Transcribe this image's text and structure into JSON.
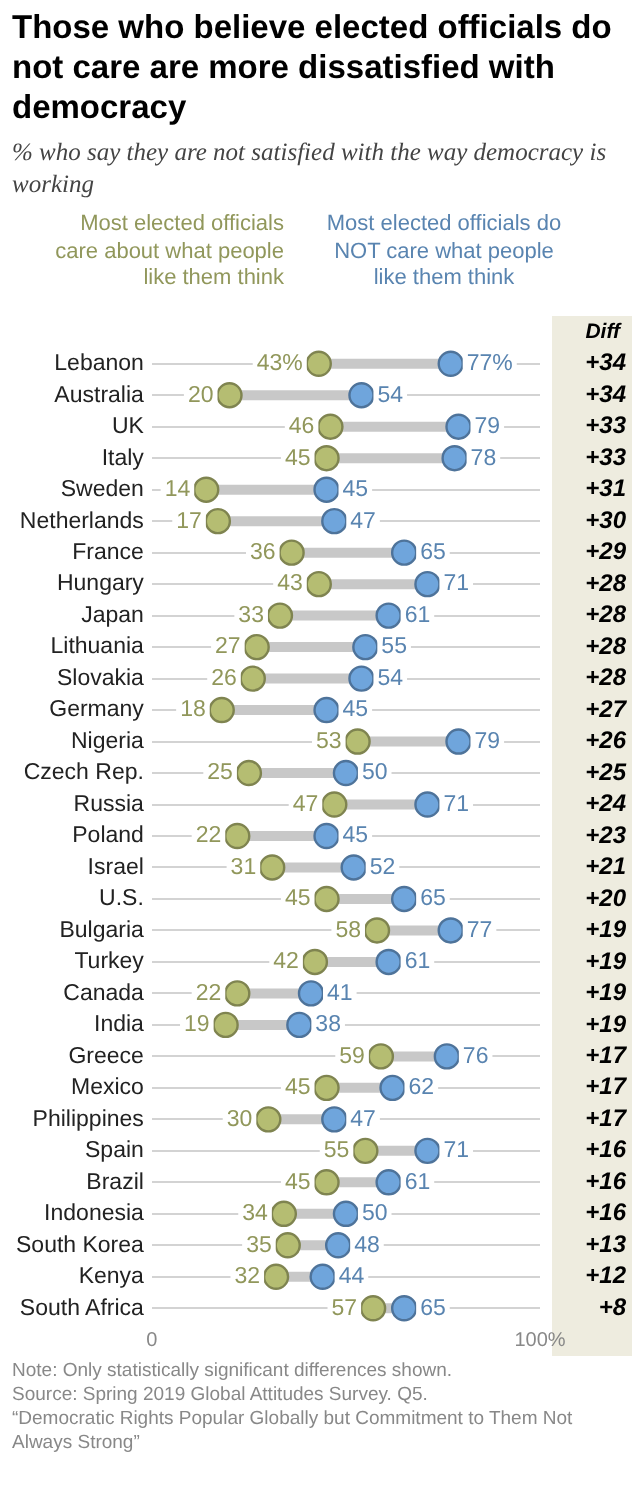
{
  "chart_data": {
    "type": "scatter",
    "title": "Those who believe elected officials do not care are more dissatisfied with democracy",
    "subtitle": "% who say they are not satisfied with the way democracy is working",
    "orientation": "horizontal",
    "categories": [
      "Lebanon",
      "Australia",
      "UK",
      "Italy",
      "Sweden",
      "Netherlands",
      "France",
      "Hungary",
      "Japan",
      "Lithuania",
      "Slovakia",
      "Germany",
      "Nigeria",
      "Czech Rep.",
      "Russia",
      "Poland",
      "Israel",
      "U.S.",
      "Bulgaria",
      "Turkey",
      "Canada",
      "India",
      "Greece",
      "Mexico",
      "Philippines",
      "Spain",
      "Brazil",
      "Indonesia",
      "South Korea",
      "Kenya",
      "South Africa"
    ],
    "series": [
      {
        "name": "Most elected officials care about what people like them think",
        "color": "#b5bd72",
        "values": [
          43,
          20,
          46,
          45,
          14,
          17,
          36,
          43,
          33,
          27,
          26,
          18,
          53,
          25,
          47,
          22,
          31,
          45,
          58,
          42,
          22,
          19,
          59,
          45,
          30,
          55,
          45,
          34,
          35,
          32,
          57
        ],
        "value_labels": [
          "43%",
          "20",
          "46",
          "45",
          "14",
          "17",
          "36",
          "43",
          "33",
          "27",
          "26",
          "18",
          "53",
          "25",
          "47",
          "22",
          "31",
          "45",
          "58",
          "42",
          "22",
          "19",
          "59",
          "45",
          "30",
          "55",
          "45",
          "34",
          "35",
          "32",
          "57"
        ]
      },
      {
        "name": "Most elected officials do NOT care what people like them think",
        "color": "#6fa5dc",
        "values": [
          77,
          54,
          79,
          78,
          45,
          47,
          65,
          71,
          61,
          55,
          54,
          45,
          79,
          50,
          71,
          45,
          52,
          65,
          77,
          61,
          41,
          38,
          76,
          62,
          47,
          71,
          61,
          50,
          48,
          44,
          65
        ],
        "value_labels": [
          "77%",
          "54",
          "79",
          "78",
          "45",
          "47",
          "65",
          "71",
          "61",
          "55",
          "54",
          "45",
          "79",
          "50",
          "71",
          "45",
          "52",
          "65",
          "77",
          "61",
          "41",
          "38",
          "76",
          "62",
          "47",
          "71",
          "61",
          "50",
          "48",
          "44",
          "65"
        ]
      }
    ],
    "xlim": [
      0,
      100
    ],
    "xticks": [
      0,
      {
        "value": 100,
        "label": "100%"
      }
    ],
    "grid": "y",
    "legend": "top",
    "marker": "circle",
    "annotations": [
      "Diff",
      "+34",
      "+34",
      "+33",
      "+33",
      "+31",
      "+30",
      "+29",
      "+28",
      "+28",
      "+28",
      "+28",
      "+27",
      "+26",
      "+25",
      "+24",
      "+23",
      "+21",
      "+20",
      "+19",
      "+19",
      "+19",
      "+19",
      "+17",
      "+17",
      "+17",
      "+16",
      "+16",
      "+16",
      "+13",
      "+12",
      "+8",
      "Note: Only statistically significant differences shown.",
      "Source: Spring 2019 Global Attitudes Survey. Q5.",
      "“Democratic Rights Popular Globally but Commitment to Them Not Always Strong”"
    ]
  }
}
